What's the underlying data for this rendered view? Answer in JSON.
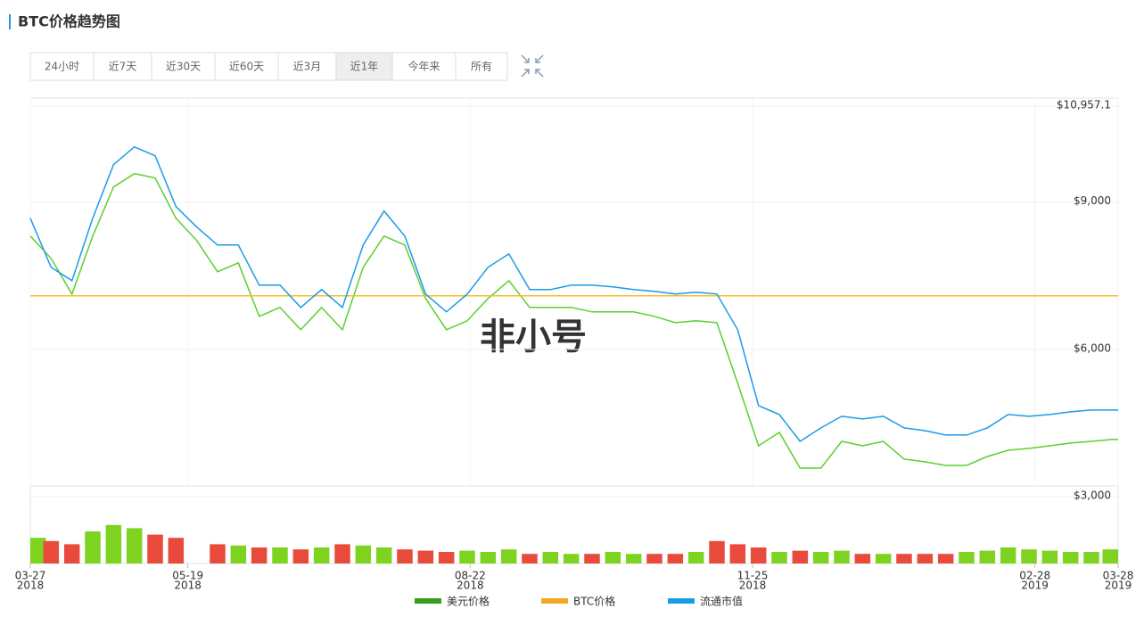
{
  "title": "BTC价格趋势图",
  "buttons": {
    "labels": [
      "24小时",
      "近7天",
      "近30天",
      "近60天",
      "近3月",
      "近1年",
      "今年来",
      "所有"
    ],
    "active_index": 5
  },
  "watermark": "非小号",
  "chart_data": {
    "type": "line",
    "x": [
      "2018-03-27",
      "2018-04-03",
      "2018-04-10",
      "2018-04-17",
      "2018-04-24",
      "2018-05-01",
      "2018-05-08",
      "2018-05-15",
      "2018-05-22",
      "2018-05-29",
      "2018-06-05",
      "2018-06-12",
      "2018-06-19",
      "2018-06-26",
      "2018-07-03",
      "2018-07-10",
      "2018-07-17",
      "2018-07-24",
      "2018-07-31",
      "2018-08-07",
      "2018-08-14",
      "2018-08-21",
      "2018-08-28",
      "2018-09-04",
      "2018-09-11",
      "2018-09-18",
      "2018-09-25",
      "2018-10-02",
      "2018-10-09",
      "2018-10-16",
      "2018-10-23",
      "2018-10-30",
      "2018-11-06",
      "2018-11-13",
      "2018-11-20",
      "2018-11-27",
      "2018-12-04",
      "2018-12-11",
      "2018-12-18",
      "2018-12-25",
      "2019-01-01",
      "2019-01-08",
      "2019-01-15",
      "2019-01-22",
      "2019-01-29",
      "2019-02-05",
      "2019-02-12",
      "2019-02-19",
      "2019-02-26",
      "2019-03-05",
      "2019-03-12",
      "2019-03-19",
      "2019-03-26",
      "2019-03-28"
    ],
    "xlim": [
      "2018-03-27",
      "2019-03-28"
    ],
    "xticks": [
      {
        "value": "2018-03-27",
        "label": [
          "03-27",
          "2018"
        ]
      },
      {
        "value": "2018-05-19",
        "label": [
          "05-19",
          "2018"
        ]
      },
      {
        "value": "2018-08-22",
        "label": [
          "08-22",
          "2018"
        ]
      },
      {
        "value": "2018-11-25",
        "label": [
          "11-25",
          "2018"
        ]
      },
      {
        "value": "2019-02-28",
        "label": [
          "02-28",
          "2019"
        ]
      },
      {
        "value": "2019-03-28",
        "label": [
          "03-28",
          "2019"
        ]
      }
    ],
    "ylim": [
      3000,
      10957.1
    ],
    "yticks": [
      {
        "value": 10957.1,
        "label": "$10,957.1"
      },
      {
        "value": 9000,
        "label": "$9,000"
      },
      {
        "value": 6000,
        "label": "$6,000"
      },
      {
        "value": 3000,
        "label": "$3,000"
      }
    ],
    "grid": true,
    "legend": "bottom",
    "series": [
      {
        "name": "美元价格",
        "color": "#5ccf2e",
        "legend_color": "#3a9c1c",
        "values": [
          8309,
          7855,
          7127,
          8309,
          9309,
          9582,
          9491,
          8673,
          8218,
          7582,
          7764,
          6673,
          6855,
          6400,
          6855,
          6400,
          7673,
          8309,
          8127,
          7036,
          6400,
          6582,
          7036,
          7400,
          6855,
          6855,
          6855,
          6764,
          6764,
          6764,
          6673,
          6545,
          6582,
          6545,
          5309,
          4036,
          4309,
          3582,
          3582,
          4127,
          4036,
          4127,
          3764,
          3709,
          3636,
          3636,
          3818,
          3945,
          3982,
          4036,
          4091,
          4127,
          4164,
          4164
        ]
      },
      {
        "name": "BTC价格",
        "color": "#f5c025",
        "legend_color": "#f5a623",
        "values": [
          7091,
          7091,
          7091,
          7091,
          7091,
          7091,
          7091,
          7091,
          7091,
          7091,
          7091,
          7091,
          7091,
          7091,
          7091,
          7091,
          7091,
          7091,
          7091,
          7091,
          7091,
          7091,
          7091,
          7091,
          7091,
          7091,
          7091,
          7091,
          7091,
          7091,
          7091,
          7091,
          7091,
          7091,
          7091,
          7091,
          7091,
          7091,
          7091,
          7091,
          7091,
          7091,
          7091,
          7091,
          7091,
          7091,
          7091,
          7091,
          7091,
          7091,
          7091,
          7091,
          7091,
          7091
        ]
      },
      {
        "name": "流通市值",
        "color": "#1a9be6",
        "legend_color": "#1a9be6",
        "values": [
          8673,
          7673,
          7400,
          8673,
          9764,
          10127,
          9945,
          8909,
          8491,
          8127,
          8127,
          7309,
          7309,
          6855,
          7218,
          6855,
          8127,
          8818,
          8309,
          7127,
          6764,
          7127,
          7673,
          7945,
          7218,
          7218,
          7309,
          7309,
          7273,
          7218,
          7182,
          7127,
          7164,
          7127,
          6400,
          4855,
          4673,
          4127,
          4400,
          4636,
          4582,
          4636,
          4400,
          4345,
          4255,
          4255,
          4400,
          4673,
          4636,
          4673,
          4727,
          4764,
          4764,
          4764
        ]
      }
    ],
    "volume": {
      "ylim": [
        0,
        100
      ],
      "up_color": "#7ed321",
      "down_color": "#e84b3c",
      "values": [
        40,
        35,
        30,
        50,
        60,
        55,
        45,
        40,
        null,
        30,
        28,
        25,
        25,
        22,
        25,
        30,
        28,
        25,
        22,
        20,
        18,
        20,
        18,
        22,
        15,
        18,
        15,
        15,
        18,
        15,
        15,
        15,
        18,
        35,
        30,
        25,
        18,
        20,
        18,
        20,
        15,
        15,
        15,
        15,
        15,
        18,
        20,
        25,
        22,
        20,
        18,
        18,
        20,
        22
      ]
    }
  }
}
